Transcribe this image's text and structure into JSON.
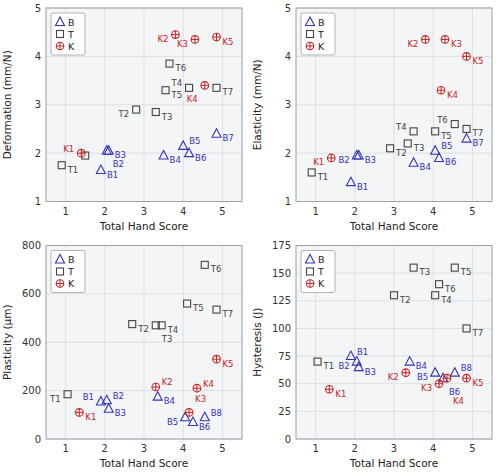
{
  "chart_data": [
    {
      "type": "scatter",
      "x_label": "Total Hand Score",
      "y_label": "Deformation (mm/N)",
      "xlim": [
        0.5,
        5.5
      ],
      "xticks": [
        1,
        2,
        3,
        4,
        5
      ],
      "ylim": [
        1,
        5
      ],
      "yticks": [
        1,
        2,
        3,
        4,
        5
      ],
      "grid": true,
      "legend": "upper left",
      "series": [
        {
          "name": "B",
          "color": "#3333bb",
          "marker": "triangle",
          "x": [
            1.9,
            2.05,
            2.1,
            3.5,
            4.0,
            4.15,
            4.85
          ],
          "values": [
            1.65,
            2.05,
            2.05,
            1.95,
            2.15,
            2.0,
            2.4
          ],
          "labels": [
            "B1",
            "B2",
            "B3",
            "B4",
            "B5",
            "B6",
            "B7"
          ]
        },
        {
          "name": "T",
          "color": "#444444",
          "marker": "square",
          "x": [
            0.9,
            1.5,
            2.8,
            3.3,
            3.55,
            3.65,
            4.15,
            4.85
          ],
          "values": [
            1.75,
            1.95,
            2.9,
            2.85,
            3.3,
            3.85,
            3.35,
            3.35
          ],
          "labels": [
            "T1",
            null,
            "T2",
            "T3",
            "T5",
            "T6",
            "T4",
            "T7"
          ]
        },
        {
          "name": "K",
          "color": "#cc2222",
          "marker": "circle-cross",
          "x": [
            1.4,
            3.8,
            4.3,
            4.55,
            4.85
          ],
          "values": [
            2.0,
            4.45,
            4.35,
            3.4,
            4.4
          ],
          "labels": [
            "K1",
            "K2",
            "K3",
            "K4",
            "K5"
          ]
        }
      ]
    },
    {
      "type": "scatter",
      "x_label": "Total Hand Score",
      "y_label": "Elasticity (mm/N)",
      "xlim": [
        0.5,
        5.5
      ],
      "xticks": [
        1,
        2,
        3,
        4,
        5
      ],
      "ylim": [
        1,
        5
      ],
      "yticks": [
        1,
        2,
        3,
        4,
        5
      ],
      "grid": true,
      "legend": "upper left",
      "series": [
        {
          "name": "B",
          "color": "#3333bb",
          "marker": "triangle",
          "x": [
            1.9,
            2.05,
            2.1,
            3.5,
            4.05,
            4.15,
            4.85
          ],
          "values": [
            1.4,
            1.95,
            1.95,
            1.8,
            2.05,
            1.9,
            2.3
          ],
          "labels": [
            "B1",
            "B2",
            "B3",
            "B4",
            "B5",
            "B6",
            "B7"
          ]
        },
        {
          "name": "T",
          "color": "#444444",
          "marker": "square",
          "x": [
            0.9,
            2.9,
            3.35,
            3.5,
            4.05,
            4.55,
            4.85
          ],
          "values": [
            1.6,
            2.1,
            2.2,
            2.45,
            2.45,
            2.6,
            2.5
          ],
          "labels": [
            "T1",
            "T2",
            "T3",
            "T4",
            "T5",
            "T6",
            "T7"
          ]
        },
        {
          "name": "K",
          "color": "#cc2222",
          "marker": "circle-cross",
          "x": [
            1.4,
            3.8,
            4.3,
            4.2,
            4.85
          ],
          "values": [
            1.9,
            4.35,
            4.35,
            3.3,
            4.0
          ],
          "labels": [
            "K1",
            "K2",
            "K3",
            "K4",
            "K5"
          ]
        }
      ]
    },
    {
      "type": "scatter",
      "x_label": "Total Hand Score",
      "y_label": "Plasticity (μm)",
      "xlim": [
        0.5,
        5.5
      ],
      "xticks": [
        1,
        2,
        3,
        4,
        5
      ],
      "ylim": [
        0,
        800
      ],
      "yticks": [
        0,
        200,
        400,
        600,
        800
      ],
      "grid": true,
      "legend": "upper left",
      "series": [
        {
          "name": "B",
          "color": "#3333bb",
          "marker": "triangle",
          "x": [
            1.9,
            2.05,
            2.1,
            3.35,
            4.05,
            4.25,
            4.55
          ],
          "values": [
            155,
            160,
            125,
            175,
            90,
            70,
            90
          ],
          "labels": [
            "B1",
            "B2",
            "B3",
            "B4",
            "B5",
            "B6",
            "B8"
          ]
        },
        {
          "name": "T",
          "color": "#444444",
          "marker": "square",
          "x": [
            1.05,
            2.7,
            3.3,
            3.45,
            4.1,
            4.55,
            4.85
          ],
          "values": [
            185,
            475,
            470,
            470,
            560,
            720,
            535
          ],
          "labels": [
            "T1",
            "T2",
            "T3",
            "T4",
            "T5",
            "T6",
            "T7"
          ]
        },
        {
          "name": "K",
          "color": "#cc2222",
          "marker": "circle-cross",
          "x": [
            1.35,
            3.3,
            4.15,
            4.35,
            4.85
          ],
          "values": [
            110,
            215,
            110,
            210,
            330
          ],
          "labels": [
            "K1",
            "K2",
            "K3",
            "K4",
            "K5"
          ]
        }
      ]
    },
    {
      "type": "scatter",
      "x_label": "Total Hand Score",
      "y_label": "Hysteresis (J)",
      "xlim": [
        0.5,
        5.5
      ],
      "xticks": [
        1,
        2,
        3,
        4,
        5
      ],
      "ylim": [
        0,
        175
      ],
      "yticks": [
        0,
        25,
        50,
        75,
        100,
        125,
        150,
        175
      ],
      "grid": true,
      "legend": "upper left",
      "series": [
        {
          "name": "B",
          "color": "#3333bb",
          "marker": "triangle",
          "x": [
            1.9,
            2.05,
            2.1,
            3.4,
            4.05,
            4.25,
            4.55
          ],
          "values": [
            75,
            70,
            65,
            70,
            60,
            55,
            60
          ],
          "labels": [
            "B1",
            "B2",
            "B3",
            "B4",
            "B5",
            "B6",
            "B8"
          ]
        },
        {
          "name": "T",
          "color": "#444444",
          "marker": "square",
          "x": [
            1.05,
            3.0,
            3.5,
            4.05,
            4.55,
            4.85,
            4.15
          ],
          "values": [
            70,
            130,
            155,
            130,
            155,
            100,
            140
          ],
          "labels": [
            "T1",
            "T2",
            "T3",
            "T4",
            "T5",
            "T7",
            "T6"
          ]
        },
        {
          "name": "K",
          "color": "#cc2222",
          "marker": "circle-cross",
          "x": [
            1.35,
            3.3,
            4.15,
            4.35,
            4.85
          ],
          "values": [
            45,
            60,
            50,
            55,
            55
          ],
          "labels": [
            "K1",
            "K2",
            "K3",
            "K4",
            "K5"
          ]
        }
      ]
    }
  ]
}
